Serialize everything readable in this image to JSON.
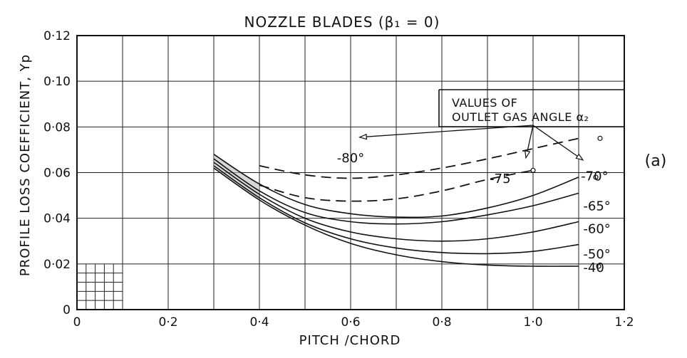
{
  "chart_data": {
    "type": "line",
    "title": "NOZZLE  BLADES  (β₁ = 0)",
    "xlabel": "PITCH /CHORD",
    "ylabel": "PROFILE  LOSS  COEFFICIENT, Yp",
    "xlim": [
      0,
      1.2
    ],
    "ylim": [
      0,
      0.12
    ],
    "x_ticks": [
      0,
      0.2,
      0.4,
      0.6,
      0.8,
      1.0,
      1.2
    ],
    "x_tick_labels": [
      "0",
      "0·2",
      "0·4",
      "0·6",
      "0·8",
      "1·0",
      "1·2"
    ],
    "y_ticks": [
      0,
      0.02,
      0.04,
      0.06,
      0.08,
      0.1,
      0.12
    ],
    "y_tick_labels": [
      "0",
      "0·02",
      "0·04",
      "0·06",
      "0·08",
      "0·10",
      "0·12"
    ],
    "grid": true,
    "grid_x_step": 0.1,
    "grid_y_step": 0.02,
    "panel_label": "(a)",
    "legend": {
      "placement": "top-right",
      "lines": [
        "VALUES  OF",
        "OUTLET  GAS  ANGLE α₂"
      ]
    },
    "series": [
      {
        "name": "-80°",
        "style": "dashed",
        "x": [
          0.4,
          0.5,
          0.6,
          0.7,
          0.8,
          0.9,
          1.0,
          1.1
        ],
        "y": [
          0.063,
          0.059,
          0.0575,
          0.059,
          0.062,
          0.066,
          0.0705,
          0.075
        ]
      },
      {
        "name": "-75",
        "style": "dashed",
        "x": [
          0.4,
          0.5,
          0.6,
          0.7,
          0.8,
          0.9,
          1.0
        ],
        "y": [
          0.0545,
          0.049,
          0.0475,
          0.0485,
          0.052,
          0.057,
          0.061
        ]
      },
      {
        "name": "-70°",
        "style": "solid",
        "x": [
          0.3,
          0.4,
          0.5,
          0.6,
          0.7,
          0.8,
          0.9,
          1.0,
          1.1
        ],
        "y": [
          0.068,
          0.055,
          0.046,
          0.042,
          0.0405,
          0.041,
          0.0445,
          0.05,
          0.058
        ]
      },
      {
        "name": "-65°",
        "style": "solid",
        "x": [
          0.3,
          0.4,
          0.5,
          0.6,
          0.7,
          0.8,
          0.9,
          1.0,
          1.1
        ],
        "y": [
          0.066,
          0.052,
          0.0425,
          0.0385,
          0.0375,
          0.0385,
          0.0415,
          0.0455,
          0.051
        ]
      },
      {
        "name": "-60°",
        "style": "solid",
        "x": [
          0.3,
          0.4,
          0.5,
          0.6,
          0.7,
          0.8,
          0.9,
          1.0,
          1.1
        ],
        "y": [
          0.0645,
          0.0505,
          0.04,
          0.034,
          0.031,
          0.03,
          0.031,
          0.034,
          0.0385
        ]
      },
      {
        "name": "-50°",
        "style": "solid",
        "x": [
          0.3,
          0.4,
          0.5,
          0.6,
          0.7,
          0.8,
          0.9,
          1.0,
          1.1
        ],
        "y": [
          0.063,
          0.049,
          0.038,
          0.031,
          0.027,
          0.025,
          0.0245,
          0.0255,
          0.0285
        ]
      },
      {
        "name": "-40",
        "style": "solid",
        "x": [
          0.3,
          0.4,
          0.5,
          0.6,
          0.7,
          0.8,
          0.9,
          1.0,
          1.1
        ],
        "y": [
          0.062,
          0.048,
          0.037,
          0.029,
          0.024,
          0.021,
          0.0195,
          0.019,
          0.019
        ]
      }
    ]
  }
}
